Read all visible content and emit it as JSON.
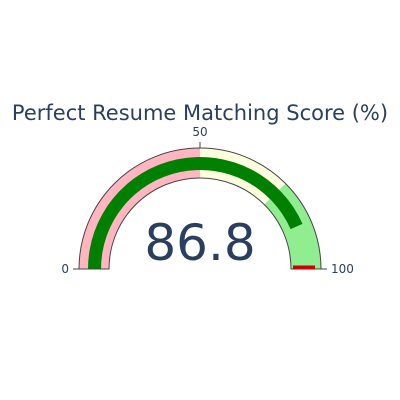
{
  "chart_data": {
    "type": "gauge",
    "title": "Perfect Resume Matching Score (%)",
    "value": 86.8,
    "value_text": "86.8",
    "axis_range": [
      0,
      100
    ],
    "ticks": [
      {
        "value": 0,
        "label": "0"
      },
      {
        "value": 50,
        "label": "50"
      },
      {
        "value": 100,
        "label": "100"
      }
    ],
    "steps": [
      {
        "range": [
          0,
          50
        ],
        "color": "#ffb6c1"
      },
      {
        "range": [
          50,
          75
        ],
        "color": "#ffffe0"
      },
      {
        "range": [
          75,
          100
        ],
        "color": "#90ee90"
      }
    ],
    "bar": {
      "value": 86.8,
      "color": "#008000"
    },
    "threshold": {
      "value": 100,
      "color": "#cc0000"
    },
    "gauge_border_color": "#444444"
  }
}
